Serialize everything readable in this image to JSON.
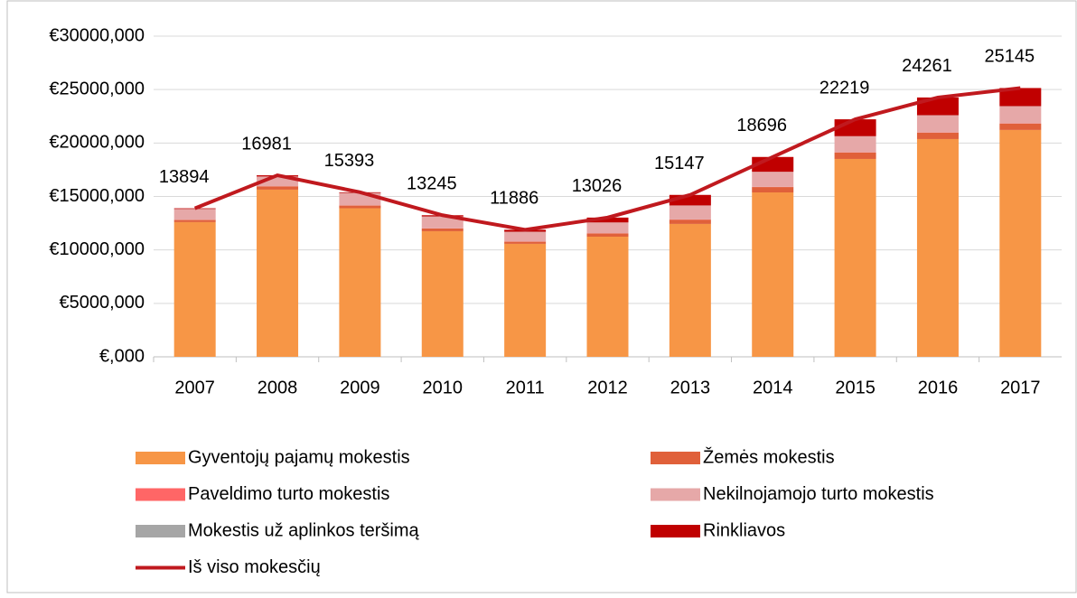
{
  "chart_data": {
    "type": "bar",
    "stacked": true,
    "categories": [
      "2007",
      "2008",
      "2009",
      "2010",
      "2011",
      "2012",
      "2013",
      "2014",
      "2015",
      "2016",
      "2017"
    ],
    "series": [
      {
        "name": "Gyventojų pajamų mokestis",
        "color": "#f79646",
        "values": [
          12600,
          15640,
          13900,
          11750,
          10570,
          11240,
          12430,
          15380,
          18510,
          20370,
          21220
        ]
      },
      {
        "name": "Žemės mokestis",
        "color": "#e0603a",
        "values": [
          200,
          300,
          250,
          250,
          200,
          300,
          400,
          500,
          600,
          600,
          600
        ]
      },
      {
        "name": "Paveldimo turto mokestis",
        "color": "#ff6666",
        "values": [
          20,
          20,
          20,
          20,
          20,
          20,
          20,
          20,
          20,
          20,
          20
        ]
      },
      {
        "name": "Nekilnojamojo turto mokestis",
        "color": "#e6a8a8",
        "values": [
          1000,
          900,
          1150,
          1100,
          900,
          1000,
          1300,
          1400,
          1500,
          1600,
          1600
        ]
      },
      {
        "name": "Mokestis už aplinkos teršimą",
        "color": "#a6a6a6",
        "values": [
          10,
          10,
          10,
          10,
          10,
          10,
          10,
          10,
          10,
          10,
          10
        ]
      },
      {
        "name": "Rinkliavos",
        "color": "#c00000",
        "values": [
          64,
          111,
          63,
          115,
          186,
          456,
          987,
          1386,
          1579,
          1661,
          1695
        ]
      },
      {
        "name": "Iš viso mokesčių",
        "type": "line",
        "color": "#c0191e",
        "values": [
          13894,
          16981,
          15393,
          13245,
          11886,
          13026,
          15147,
          18696,
          22219,
          24261,
          25145
        ]
      }
    ],
    "ylim": [
      0,
      30000
    ],
    "yticks": [
      {
        "value": 0,
        "label": "€,000"
      },
      {
        "value": 5000,
        "label": "€5000,000"
      },
      {
        "value": 10000,
        "label": "€10000,000"
      },
      {
        "value": 15000,
        "label": "€15000,000"
      },
      {
        "value": 20000,
        "label": "€20000,000"
      },
      {
        "value": 25000,
        "label": "€25000,000"
      },
      {
        "value": 30000,
        "label": "€30000,000"
      }
    ],
    "grid": true,
    "legend": "bottom"
  }
}
